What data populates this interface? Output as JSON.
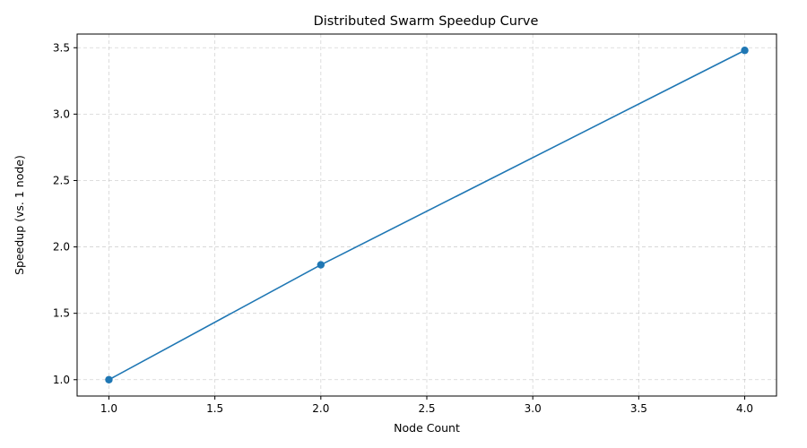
{
  "chart_data": {
    "type": "line",
    "title": "Distributed Swarm Speedup Curve",
    "xlabel": "Node Count",
    "ylabel": "Speedup (vs. 1 node)",
    "xlim": [
      0.85,
      4.15
    ],
    "ylim": [
      0.877,
      3.603
    ],
    "xticks": [
      1.0,
      1.5,
      2.0,
      2.5,
      3.0,
      3.5,
      4.0
    ],
    "yticks": [
      1.0,
      1.5,
      2.0,
      2.5,
      3.0,
      3.5
    ],
    "xtick_labels": [
      "1.0",
      "1.5",
      "2.0",
      "2.5",
      "3.0",
      "3.5",
      "4.0"
    ],
    "ytick_labels": [
      "1.0",
      "1.5",
      "2.0",
      "2.5",
      "3.0",
      "3.5"
    ],
    "grid": true,
    "series": [
      {
        "color": "#1f77b4",
        "marker": "circle",
        "x": [
          1,
          2,
          4
        ],
        "y": [
          1.0,
          1.865,
          3.48
        ]
      }
    ]
  }
}
